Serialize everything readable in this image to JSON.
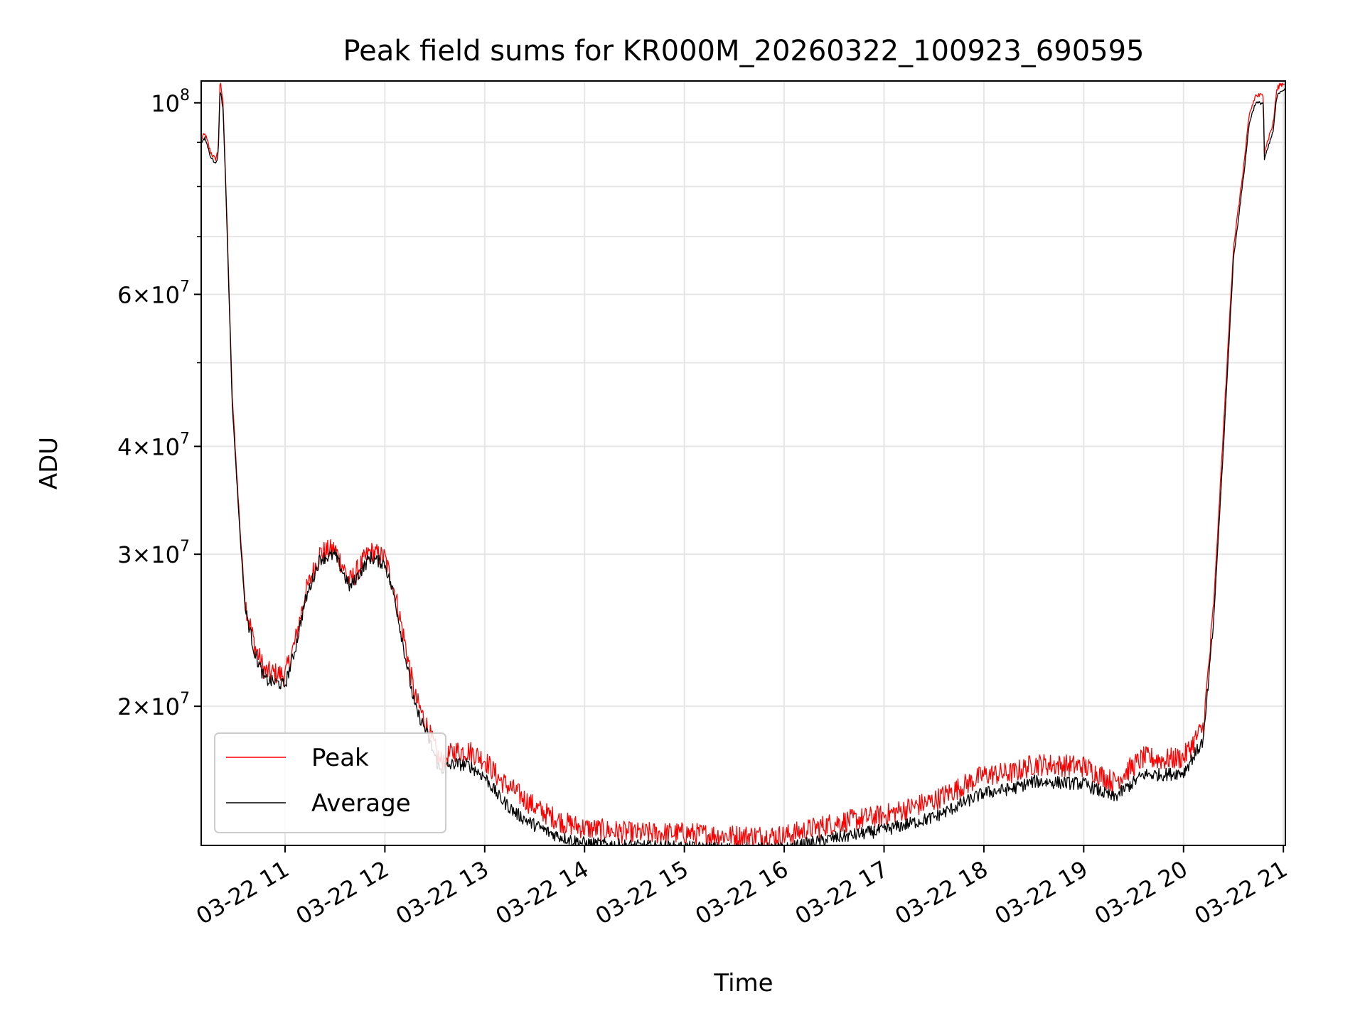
{
  "chart_data": {
    "type": "line",
    "title": "Peak field sums for KR000M_20260322_100923_690595",
    "xlabel": "Time",
    "ylabel": "ADU",
    "yscale": "log",
    "ylim": [
      13800000,
      106000000
    ],
    "xlim": [
      10.16,
      21.02
    ],
    "grid": true,
    "legend_position": "lower-left",
    "x_ticks": [
      {
        "value": 11,
        "label": "03-22 11"
      },
      {
        "value": 12,
        "label": "03-22 12"
      },
      {
        "value": 13,
        "label": "03-22 13"
      },
      {
        "value": 14,
        "label": "03-22 14"
      },
      {
        "value": 15,
        "label": "03-22 15"
      },
      {
        "value": 16,
        "label": "03-22 16"
      },
      {
        "value": 17,
        "label": "03-22 17"
      },
      {
        "value": 18,
        "label": "03-22 18"
      },
      {
        "value": 19,
        "label": "03-22 19"
      },
      {
        "value": 20,
        "label": "03-22 20"
      },
      {
        "value": 21,
        "label": "03-22 21"
      }
    ],
    "y_major_ticks": [
      {
        "value": 20000000,
        "mantissa": "2",
        "base": "10",
        "exp": "7"
      },
      {
        "value": 30000000,
        "mantissa": "3",
        "base": "10",
        "exp": "7"
      },
      {
        "value": 40000000,
        "mantissa": "4",
        "base": "10",
        "exp": "7"
      },
      {
        "value": 60000000,
        "mantissa": "6",
        "base": "10",
        "exp": "7"
      },
      {
        "value": 100000000,
        "mantissa": "",
        "base": "10",
        "exp": "8"
      }
    ],
    "y_minor_ticks": [
      50000000,
      70000000,
      80000000,
      90000000
    ],
    "series": [
      {
        "name": "Peak",
        "color": "#ff0000",
        "noise": 0.06,
        "x": [
          10.16,
          10.2,
          10.25,
          10.3,
          10.33,
          10.35,
          10.38,
          10.42,
          10.47,
          10.55,
          10.6,
          10.7,
          10.8,
          11.0,
          11.1,
          11.2,
          11.27,
          11.35,
          11.5,
          11.65,
          11.85,
          12.0,
          12.1,
          12.2,
          12.3,
          12.4,
          12.55,
          12.7,
          12.85,
          13.0,
          13.15,
          13.3,
          13.45,
          13.55,
          13.65,
          13.8,
          14.0,
          14.5,
          15.0,
          15.5,
          16.0,
          16.5,
          17.0,
          17.5,
          18.0,
          18.3,
          18.5,
          19.0,
          19.3,
          19.6,
          19.8,
          20.0,
          20.2,
          20.3,
          20.4,
          20.5,
          20.6,
          20.66,
          20.72,
          20.8,
          20.81,
          20.85,
          20.9,
          20.93,
          20.96,
          21.02
        ],
        "y": [
          91000000,
          92000000,
          88000000,
          86000000,
          88000000,
          106000000,
          100000000,
          72000000,
          46000000,
          32000000,
          26500000,
          23500000,
          22000000,
          21800000,
          23800000,
          27000000,
          28500000,
          30200000,
          30500000,
          28000000,
          30300000,
          29800000,
          27200000,
          23800000,
          20600000,
          19300000,
          17300000,
          17800000,
          17800000,
          17400000,
          16500000,
          16000000,
          15500000,
          15200000,
          15000000,
          14700000,
          14500000,
          14300000,
          14300000,
          14200000,
          14200000,
          14700000,
          15000000,
          15600000,
          16700000,
          16800000,
          17200000,
          17100000,
          16400000,
          17500000,
          17400000,
          17500000,
          19000000,
          26000000,
          42000000,
          68000000,
          84000000,
          97000000,
          102000000,
          102000000,
          88000000,
          91000000,
          95000000,
          103000000,
          105000000,
          105500000
        ]
      },
      {
        "name": "Average",
        "color": "#000000",
        "noise": 0.035,
        "x": [
          10.16,
          10.2,
          10.25,
          10.3,
          10.33,
          10.35,
          10.38,
          10.42,
          10.47,
          10.55,
          10.6,
          10.7,
          10.8,
          11.0,
          11.1,
          11.2,
          11.27,
          11.35,
          11.5,
          11.65,
          11.85,
          12.0,
          12.1,
          12.2,
          12.3,
          12.4,
          12.55,
          12.7,
          12.85,
          13.0,
          13.15,
          13.3,
          13.45,
          13.55,
          13.65,
          13.8,
          14.0,
          14.5,
          15.0,
          15.5,
          16.0,
          16.5,
          17.0,
          17.5,
          18.0,
          18.3,
          18.5,
          19.0,
          19.3,
          19.6,
          19.8,
          20.0,
          20.2,
          20.3,
          20.4,
          20.5,
          20.6,
          20.66,
          20.72,
          20.8,
          20.81,
          20.85,
          20.9,
          20.93,
          20.96,
          21.02
        ],
        "y": [
          90000000,
          91000000,
          87000000,
          85000000,
          87000000,
          104000000,
          98000000,
          71000000,
          45000000,
          31500000,
          26000000,
          23000000,
          21500000,
          21200000,
          23300000,
          26500000,
          28000000,
          29700000,
          30000000,
          27500000,
          29800000,
          29300000,
          26700000,
          23000000,
          20000000,
          18900000,
          16900000,
          17200000,
          17100000,
          16600000,
          15700000,
          15100000,
          14700000,
          14500000,
          14300000,
          14100000,
          13900000,
          13800000,
          13750000,
          13700000,
          13700000,
          14100000,
          14400000,
          14900000,
          15900000,
          16100000,
          16400000,
          16300000,
          15700000,
          16700000,
          16700000,
          16800000,
          18300000,
          25000000,
          40000000,
          66000000,
          82000000,
          95000000,
          100000000,
          100000000,
          86000000,
          89000000,
          93000000,
          101000000,
          103000000,
          104000000
        ]
      }
    ]
  }
}
